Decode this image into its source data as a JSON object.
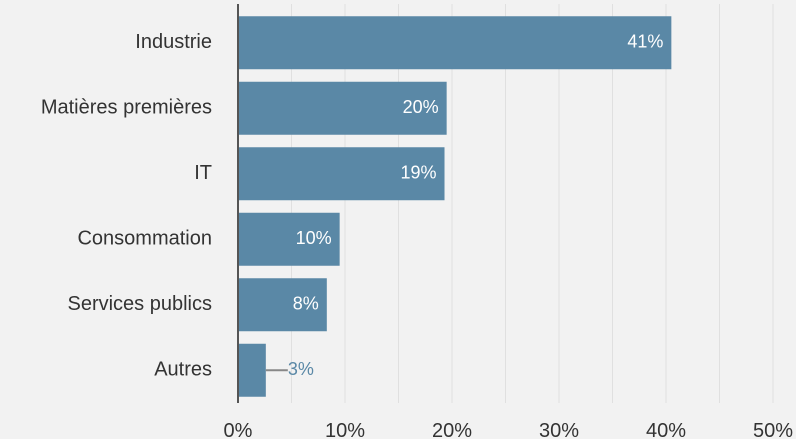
{
  "chart_data": {
    "type": "bar",
    "orientation": "horizontal",
    "categories": [
      "Industrie",
      "Matières premières",
      "IT",
      "Consommation",
      "Services publics",
      "Autres"
    ],
    "values": [
      40.5,
      19.5,
      19.3,
      9.5,
      8.3,
      2.6
    ],
    "value_labels": [
      "41%",
      "20%",
      "19%",
      "10%",
      "8%",
      "3%"
    ],
    "x_ticks": [
      "0%",
      "10%",
      "20%",
      "30%",
      "40%",
      "50%"
    ],
    "xlim": [
      0,
      50
    ],
    "grid": true,
    "bar_color": "#5a88a6",
    "inside_label_color": "#ffffff",
    "outside_label_color": "#5a88a6",
    "axis_color": "#555555",
    "grid_color": "#e0e0e0"
  }
}
